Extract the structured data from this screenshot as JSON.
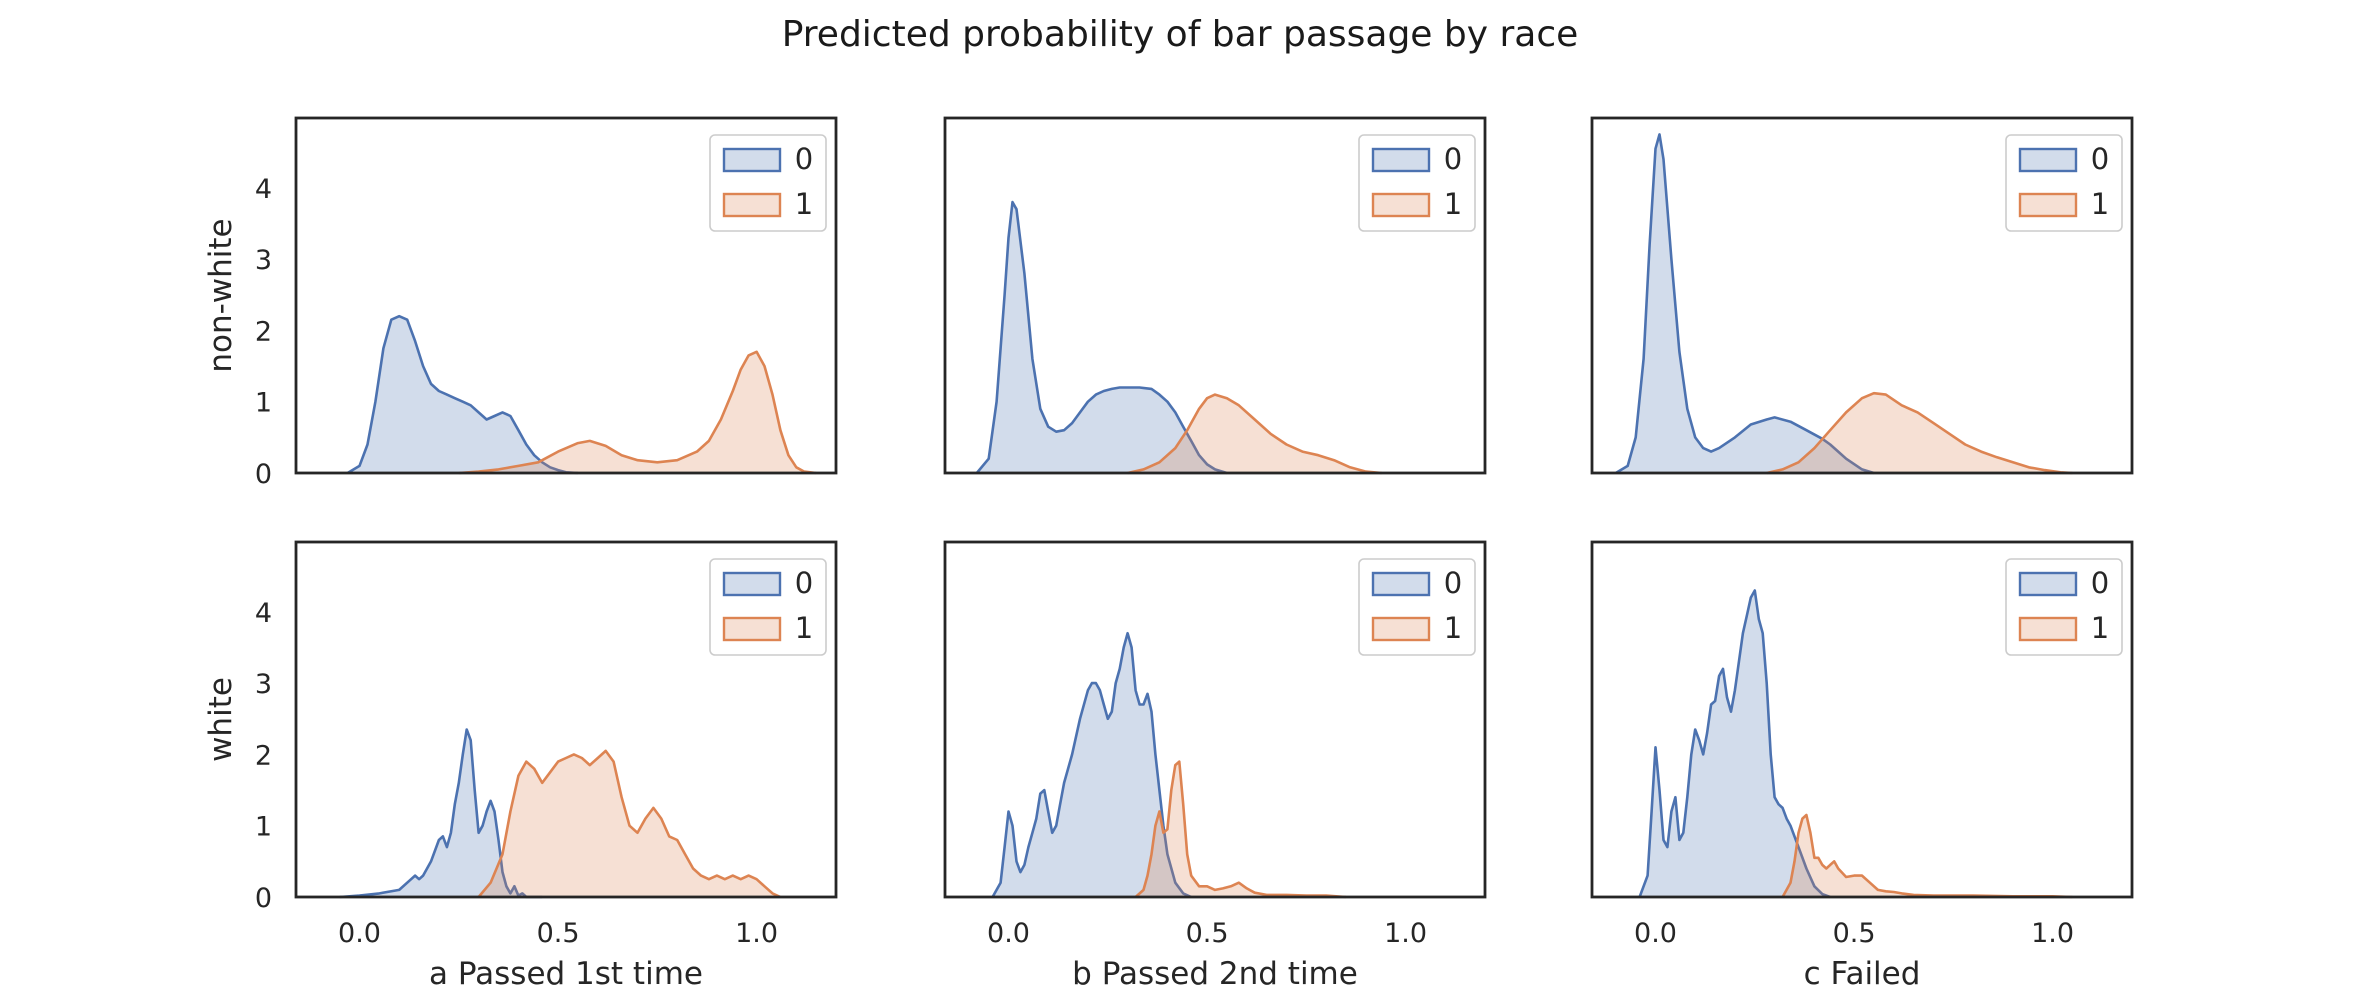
{
  "title": "Predicted probability of bar passage by race",
  "colors": {
    "series0": "#4c72b0",
    "series1": "#dd8452"
  },
  "chart_data": [
    {
      "type": "area",
      "panel": "a-non-white",
      "row_label": "non-white",
      "xlabel": "",
      "x_ticks": [
        "0.0",
        "0.5",
        "1.0"
      ],
      "y_ticks": [
        "0",
        "1",
        "2",
        "3",
        "4"
      ],
      "xlim": [
        -0.16,
        1.2
      ],
      "ylim": [
        0,
        4.98
      ],
      "legend": [
        "0",
        "1"
      ],
      "legend_position": "top-right",
      "series": [
        {
          "name": "0",
          "x": [
            -0.03,
            0.0,
            0.02,
            0.04,
            0.06,
            0.08,
            0.1,
            0.12,
            0.14,
            0.16,
            0.18,
            0.2,
            0.22,
            0.24,
            0.26,
            0.28,
            0.3,
            0.32,
            0.34,
            0.36,
            0.38,
            0.4,
            0.42,
            0.44,
            0.46,
            0.48,
            0.5,
            0.52,
            0.55
          ],
          "y": [
            0.0,
            0.1,
            0.4,
            1.0,
            1.75,
            2.15,
            2.2,
            2.15,
            1.85,
            1.5,
            1.25,
            1.15,
            1.1,
            1.05,
            1.0,
            0.95,
            0.85,
            0.75,
            0.8,
            0.85,
            0.8,
            0.6,
            0.4,
            0.25,
            0.15,
            0.08,
            0.04,
            0.01,
            0.0
          ]
        },
        {
          "name": "1",
          "x": [
            0.25,
            0.3,
            0.35,
            0.4,
            0.45,
            0.5,
            0.55,
            0.58,
            0.62,
            0.66,
            0.7,
            0.75,
            0.8,
            0.85,
            0.88,
            0.91,
            0.94,
            0.96,
            0.98,
            1.0,
            1.02,
            1.04,
            1.06,
            1.08,
            1.1,
            1.12,
            1.15
          ],
          "y": [
            0.0,
            0.02,
            0.05,
            0.1,
            0.15,
            0.3,
            0.42,
            0.45,
            0.38,
            0.25,
            0.18,
            0.15,
            0.18,
            0.3,
            0.45,
            0.75,
            1.15,
            1.45,
            1.65,
            1.7,
            1.5,
            1.1,
            0.6,
            0.25,
            0.08,
            0.02,
            0.0
          ]
        }
      ]
    },
    {
      "type": "area",
      "panel": "b-non-white",
      "row_label": "",
      "xlabel": "",
      "x_ticks": [
        "0.0",
        "0.5",
        "1.0"
      ],
      "y_ticks": [
        "0",
        "1",
        "2",
        "3",
        "4"
      ],
      "xlim": [
        -0.16,
        1.2
      ],
      "ylim": [
        0,
        4.98
      ],
      "legend": [
        "0",
        "1"
      ],
      "legend_position": "top-right",
      "series": [
        {
          "name": "0",
          "x": [
            -0.08,
            -0.05,
            -0.03,
            -0.01,
            0.0,
            0.01,
            0.02,
            0.04,
            0.06,
            0.08,
            0.1,
            0.12,
            0.14,
            0.16,
            0.18,
            0.2,
            0.22,
            0.24,
            0.26,
            0.28,
            0.3,
            0.33,
            0.36,
            0.38,
            0.4,
            0.42,
            0.44,
            0.46,
            0.48,
            0.5,
            0.52,
            0.55
          ],
          "y": [
            0.0,
            0.2,
            1.0,
            2.5,
            3.3,
            3.8,
            3.7,
            2.8,
            1.6,
            0.9,
            0.65,
            0.58,
            0.6,
            0.7,
            0.85,
            1.0,
            1.1,
            1.15,
            1.18,
            1.2,
            1.2,
            1.2,
            1.18,
            1.1,
            1.0,
            0.85,
            0.65,
            0.45,
            0.25,
            0.12,
            0.05,
            0.0
          ]
        },
        {
          "name": "1",
          "x": [
            0.3,
            0.34,
            0.38,
            0.42,
            0.45,
            0.48,
            0.5,
            0.52,
            0.55,
            0.58,
            0.62,
            0.66,
            0.7,
            0.74,
            0.78,
            0.82,
            0.86,
            0.9,
            0.94
          ],
          "y": [
            0.0,
            0.05,
            0.15,
            0.35,
            0.6,
            0.9,
            1.05,
            1.1,
            1.05,
            0.95,
            0.75,
            0.55,
            0.4,
            0.3,
            0.25,
            0.18,
            0.08,
            0.02,
            0.0
          ]
        }
      ]
    },
    {
      "type": "area",
      "panel": "c-non-white",
      "row_label": "",
      "xlabel": "",
      "x_ticks": [
        "0.0",
        "0.5",
        "1.0"
      ],
      "y_ticks": [
        "0",
        "1",
        "2",
        "3",
        "4"
      ],
      "xlim": [
        -0.16,
        1.2
      ],
      "ylim": [
        0,
        4.98
      ],
      "legend": [
        "0",
        "1"
      ],
      "legend_position": "top-right",
      "series": [
        {
          "name": "0",
          "x": [
            -0.1,
            -0.07,
            -0.05,
            -0.03,
            -0.015,
            0.0,
            0.01,
            0.02,
            0.04,
            0.06,
            0.08,
            0.1,
            0.12,
            0.14,
            0.16,
            0.2,
            0.24,
            0.28,
            0.3,
            0.34,
            0.38,
            0.42,
            0.44,
            0.46,
            0.48,
            0.52,
            0.55
          ],
          "y": [
            0.0,
            0.1,
            0.5,
            1.6,
            3.2,
            4.55,
            4.75,
            4.4,
            3.0,
            1.7,
            0.9,
            0.5,
            0.35,
            0.3,
            0.35,
            0.5,
            0.68,
            0.75,
            0.78,
            0.72,
            0.6,
            0.48,
            0.4,
            0.3,
            0.2,
            0.05,
            0.0
          ]
        },
        {
          "name": "1",
          "x": [
            0.28,
            0.32,
            0.36,
            0.4,
            0.44,
            0.48,
            0.52,
            0.55,
            0.58,
            0.62,
            0.66,
            0.7,
            0.74,
            0.78,
            0.82,
            0.86,
            0.9,
            0.94,
            0.98,
            1.02,
            1.05
          ],
          "y": [
            0.0,
            0.05,
            0.15,
            0.35,
            0.6,
            0.85,
            1.05,
            1.12,
            1.1,
            0.95,
            0.85,
            0.7,
            0.55,
            0.4,
            0.3,
            0.22,
            0.15,
            0.08,
            0.04,
            0.01,
            0.0
          ]
        }
      ]
    },
    {
      "type": "area",
      "panel": "a-white",
      "row_label": "white",
      "xlabel": "a Passed 1st time",
      "x_ticks": [
        "0.0",
        "0.5",
        "1.0"
      ],
      "y_ticks": [
        "0",
        "1",
        "2",
        "3",
        "4"
      ],
      "xlim": [
        -0.16,
        1.2
      ],
      "ylim": [
        0,
        4.98
      ],
      "legend": [
        "0",
        "1"
      ],
      "legend_position": "top-right",
      "series": [
        {
          "name": "0",
          "x": [
            -0.05,
            0.0,
            0.05,
            0.1,
            0.13,
            0.14,
            0.15,
            0.16,
            0.18,
            0.2,
            0.21,
            0.22,
            0.23,
            0.24,
            0.25,
            0.26,
            0.27,
            0.28,
            0.29,
            0.3,
            0.31,
            0.32,
            0.33,
            0.34,
            0.35,
            0.36,
            0.37,
            0.38,
            0.39,
            0.4,
            0.41,
            0.42,
            0.44,
            0.46
          ],
          "y": [
            0.0,
            0.02,
            0.05,
            0.1,
            0.25,
            0.3,
            0.25,
            0.3,
            0.5,
            0.8,
            0.85,
            0.7,
            0.9,
            1.3,
            1.6,
            2.0,
            2.35,
            2.2,
            1.5,
            0.9,
            1.0,
            1.2,
            1.35,
            1.2,
            0.8,
            0.35,
            0.15,
            0.05,
            0.15,
            0.02,
            0.05,
            0.0,
            0.0,
            0.0
          ]
        },
        {
          "name": "1",
          "x": [
            0.3,
            0.33,
            0.36,
            0.38,
            0.4,
            0.42,
            0.44,
            0.46,
            0.48,
            0.5,
            0.52,
            0.54,
            0.56,
            0.58,
            0.6,
            0.62,
            0.64,
            0.66,
            0.68,
            0.7,
            0.72,
            0.74,
            0.76,
            0.78,
            0.8,
            0.82,
            0.84,
            0.86,
            0.88,
            0.9,
            0.92,
            0.94,
            0.96,
            0.98,
            1.0,
            1.02,
            1.04,
            1.06
          ],
          "y": [
            0.0,
            0.2,
            0.6,
            1.2,
            1.7,
            1.9,
            1.8,
            1.6,
            1.75,
            1.9,
            1.95,
            2.0,
            1.95,
            1.85,
            1.95,
            2.05,
            1.9,
            1.4,
            1.0,
            0.9,
            1.1,
            1.25,
            1.1,
            0.85,
            0.8,
            0.6,
            0.4,
            0.3,
            0.25,
            0.3,
            0.25,
            0.3,
            0.25,
            0.3,
            0.25,
            0.15,
            0.05,
            0.0
          ]
        }
      ]
    },
    {
      "type": "area",
      "panel": "b-white",
      "row_label": "",
      "xlabel": "b Passed 2nd time",
      "x_ticks": [
        "0.0",
        "0.5",
        "1.0"
      ],
      "y_ticks": [
        "0",
        "1",
        "2",
        "3",
        "4"
      ],
      "xlim": [
        -0.16,
        1.2
      ],
      "ylim": [
        0,
        4.98
      ],
      "legend": [
        "0",
        "1"
      ],
      "legend_position": "top-right",
      "series": [
        {
          "name": "0",
          "x": [
            -0.04,
            -0.02,
            -0.01,
            0.0,
            0.01,
            0.02,
            0.03,
            0.04,
            0.05,
            0.06,
            0.07,
            0.08,
            0.09,
            0.1,
            0.11,
            0.12,
            0.13,
            0.14,
            0.16,
            0.18,
            0.2,
            0.21,
            0.22,
            0.23,
            0.24,
            0.25,
            0.26,
            0.27,
            0.28,
            0.29,
            0.3,
            0.31,
            0.32,
            0.33,
            0.34,
            0.35,
            0.36,
            0.37,
            0.38,
            0.39,
            0.4,
            0.42,
            0.44,
            0.46
          ],
          "y": [
            0.0,
            0.2,
            0.7,
            1.2,
            1.0,
            0.5,
            0.35,
            0.45,
            0.7,
            0.9,
            1.1,
            1.45,
            1.5,
            1.2,
            0.9,
            1.0,
            1.3,
            1.6,
            2.0,
            2.5,
            2.9,
            3.0,
            3.0,
            2.9,
            2.7,
            2.5,
            2.6,
            3.0,
            3.2,
            3.5,
            3.7,
            3.5,
            2.9,
            2.7,
            2.7,
            2.85,
            2.6,
            2.0,
            1.5,
            1.0,
            0.6,
            0.2,
            0.05,
            0.0
          ]
        },
        {
          "name": "1",
          "x": [
            0.32,
            0.34,
            0.35,
            0.36,
            0.37,
            0.38,
            0.39,
            0.4,
            0.41,
            0.42,
            0.43,
            0.44,
            0.45,
            0.46,
            0.48,
            0.5,
            0.52,
            0.54,
            0.56,
            0.58,
            0.6,
            0.62,
            0.65,
            0.7,
            0.75,
            0.8,
            0.85
          ],
          "y": [
            0.0,
            0.1,
            0.3,
            0.6,
            1.0,
            1.2,
            0.9,
            0.95,
            1.5,
            1.85,
            1.9,
            1.3,
            0.6,
            0.3,
            0.15,
            0.15,
            0.1,
            0.12,
            0.15,
            0.2,
            0.12,
            0.06,
            0.03,
            0.03,
            0.02,
            0.02,
            0.0
          ]
        }
      ]
    },
    {
      "type": "area",
      "panel": "c-white",
      "row_label": "",
      "xlabel": "c Failed",
      "x_ticks": [
        "0.0",
        "0.5",
        "1.0"
      ],
      "y_ticks": [
        "0",
        "1",
        "2",
        "3",
        "4"
      ],
      "xlim": [
        -0.16,
        1.2
      ],
      "ylim": [
        0,
        4.98
      ],
      "legend": [
        "0",
        "1"
      ],
      "legend_position": "top-right",
      "series": [
        {
          "name": "0",
          "x": [
            -0.04,
            -0.02,
            -0.01,
            0.0,
            0.01,
            0.02,
            0.03,
            0.04,
            0.05,
            0.06,
            0.07,
            0.08,
            0.09,
            0.1,
            0.11,
            0.12,
            0.13,
            0.14,
            0.15,
            0.16,
            0.17,
            0.18,
            0.19,
            0.2,
            0.21,
            0.22,
            0.23,
            0.24,
            0.25,
            0.26,
            0.27,
            0.28,
            0.29,
            0.3,
            0.31,
            0.32,
            0.33,
            0.34,
            0.35,
            0.36,
            0.38,
            0.4,
            0.42,
            0.44
          ],
          "y": [
            0.0,
            0.3,
            1.2,
            2.1,
            1.5,
            0.8,
            0.7,
            1.2,
            1.4,
            0.8,
            0.9,
            1.4,
            2.0,
            2.35,
            2.2,
            2.0,
            2.3,
            2.7,
            2.75,
            3.1,
            3.2,
            2.8,
            2.6,
            2.9,
            3.3,
            3.7,
            3.95,
            4.2,
            4.3,
            3.9,
            3.7,
            3.0,
            2.0,
            1.4,
            1.3,
            1.25,
            1.1,
            1.0,
            0.85,
            0.7,
            0.4,
            0.15,
            0.04,
            0.0
          ]
        },
        {
          "name": "1",
          "x": [
            0.32,
            0.34,
            0.35,
            0.36,
            0.37,
            0.38,
            0.39,
            0.4,
            0.41,
            0.42,
            0.43,
            0.44,
            0.45,
            0.46,
            0.48,
            0.5,
            0.52,
            0.54,
            0.56,
            0.58,
            0.6,
            0.62,
            0.65,
            0.7,
            0.8,
            0.9,
            1.0,
            1.05
          ],
          "y": [
            0.0,
            0.2,
            0.5,
            0.9,
            1.1,
            1.15,
            0.9,
            0.55,
            0.55,
            0.45,
            0.4,
            0.45,
            0.5,
            0.4,
            0.28,
            0.3,
            0.3,
            0.2,
            0.1,
            0.08,
            0.07,
            0.05,
            0.03,
            0.02,
            0.02,
            0.01,
            0.01,
            0.0
          ]
        }
      ]
    }
  ]
}
